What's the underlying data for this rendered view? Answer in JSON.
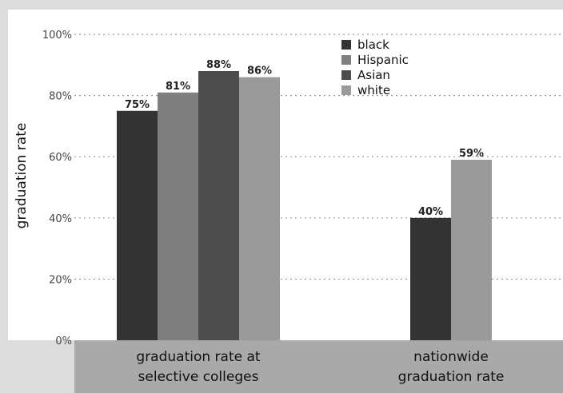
{
  "chart_data": {
    "type": "bar",
    "ylabel": "graduation rate",
    "ylim": [
      0,
      100
    ],
    "yticks": [
      "0%",
      "20%",
      "40%",
      "60%",
      "80%",
      "100%"
    ],
    "ytick_values": [
      0,
      20,
      40,
      60,
      80,
      100
    ],
    "categories": [
      [
        "graduation rate at",
        "selective colleges"
      ],
      [
        "nationwide",
        "graduation rate"
      ]
    ],
    "series": [
      {
        "name": "black",
        "color": "#333333",
        "values": [
          75,
          40
        ],
        "labels": [
          "75%",
          "40%"
        ]
      },
      {
        "name": "Hispanic",
        "color": "#7f7f7f",
        "values": [
          81,
          null
        ],
        "labels": [
          "81%",
          ""
        ]
      },
      {
        "name": "Asian",
        "color": "#4d4d4d",
        "values": [
          88,
          null
        ],
        "labels": [
          "88%",
          ""
        ]
      },
      {
        "name": "white",
        "color": "#9a9a9a",
        "values": [
          86,
          59
        ],
        "labels": [
          "86%",
          "59%"
        ]
      }
    ],
    "grid": true,
    "legend_position": "top-right"
  }
}
